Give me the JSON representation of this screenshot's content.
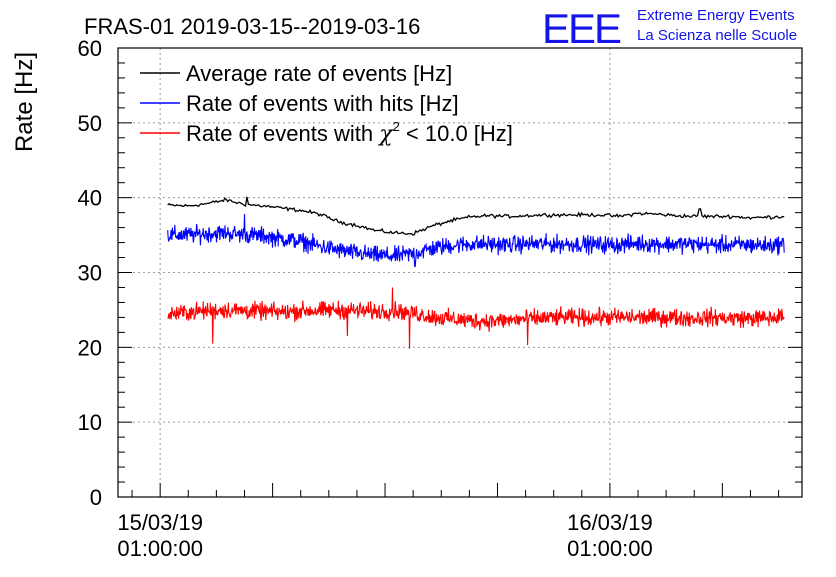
{
  "chart_data": {
    "type": "line",
    "title": "FRAS-01 2019-03-15--2019-03-16",
    "ylabel": "Rate [Hz]",
    "xlabel": "",
    "ylim": [
      0,
      60
    ],
    "yticks": [
      0,
      10,
      20,
      30,
      40,
      50,
      60
    ],
    "x_unit": "hours since 2019-03-14 00:00:00",
    "xlim": [
      22.75,
      59.25
    ],
    "xticks": [
      {
        "value": 25,
        "line1": "15/03/19",
        "line2": "01:00:00"
      },
      {
        "value": 49,
        "line1": "16/03/19",
        "line2": "01:00:00"
      }
    ],
    "grid": true,
    "legend_position": "top-left",
    "series": [
      {
        "name": "Average rate of events [Hz]",
        "color": "#000000",
        "x": [
          25.4,
          26.5,
          27.5,
          28.5,
          29.5,
          30.5,
          31.5,
          32.5,
          33.5,
          34.5,
          35.5,
          36.5,
          37.5,
          38.5,
          39.5,
          40.5,
          41.5,
          42.5,
          43.5,
          44.5,
          45.5,
          46.5,
          47.5,
          48.5,
          49.5,
          50.5,
          51.5,
          52.5,
          53.5,
          54.5,
          55.5,
          56.5,
          57.5,
          58.3
        ],
        "y": [
          39.0,
          38.9,
          39.2,
          39.7,
          39.1,
          38.9,
          38.6,
          38.3,
          37.8,
          36.8,
          36.3,
          35.6,
          35.3,
          35.2,
          36.2,
          36.9,
          37.4,
          37.6,
          37.5,
          37.6,
          37.7,
          37.7,
          37.7,
          37.7,
          37.5,
          37.9,
          37.8,
          37.6,
          37.5,
          37.5,
          37.5,
          37.3,
          37.4,
          37.5
        ],
        "noise": 0.2
      },
      {
        "name": "Rate of events with hits [Hz]",
        "color": "#0000ff",
        "x": [
          25.4,
          26.5,
          27.5,
          28.5,
          29.5,
          30.5,
          31.5,
          32.5,
          33.5,
          34.5,
          35.5,
          36.5,
          37.5,
          38.5,
          39.5,
          40.5,
          41.5,
          42.5,
          43.5,
          44.5,
          45.5,
          46.5,
          47.5,
          48.5,
          49.5,
          50.5,
          51.5,
          52.5,
          53.5,
          54.5,
          55.5,
          56.5,
          57.5,
          58.3
        ],
        "y": [
          35.0,
          35.0,
          35.2,
          35.3,
          35.0,
          34.9,
          34.5,
          34.2,
          33.5,
          33.0,
          32.6,
          32.3,
          32.2,
          32.5,
          33.2,
          33.6,
          33.8,
          33.8,
          33.7,
          33.8,
          33.8,
          33.8,
          33.8,
          33.7,
          33.7,
          33.9,
          33.8,
          33.8,
          33.8,
          33.7,
          33.7,
          33.7,
          33.6,
          33.8
        ],
        "noise": 1.0
      },
      {
        "name": "Rate of events with χ2 < 10.0 [Hz]",
        "color": "#ff0000",
        "x": [
          25.4,
          26.5,
          27.5,
          28.5,
          29.5,
          30.5,
          31.5,
          32.5,
          33.5,
          34.5,
          35.5,
          36.5,
          37.5,
          38.5,
          39.5,
          40.5,
          41.5,
          42.5,
          43.5,
          44.5,
          45.5,
          46.5,
          47.5,
          48.5,
          49.5,
          50.5,
          51.5,
          52.5,
          53.5,
          54.5,
          55.5,
          56.5,
          57.5,
          58.3
        ],
        "y": [
          24.4,
          24.7,
          24.9,
          25.0,
          24.9,
          24.8,
          24.7,
          24.9,
          24.9,
          25.0,
          24.9,
          24.8,
          24.9,
          24.6,
          24.1,
          23.8,
          23.6,
          23.5,
          23.6,
          23.8,
          23.9,
          24.0,
          24.0,
          24.0,
          24.0,
          24.0,
          24.0,
          24.0,
          23.9,
          24.0,
          23.9,
          23.9,
          23.9,
          24.1
        ],
        "noise": 1.0
      }
    ],
    "annotations": [
      {
        "series": 2,
        "x": 27.8,
        "y": 20.5
      },
      {
        "series": 2,
        "x": 35.0,
        "y": 21.5
      },
      {
        "series": 2,
        "x": 37.4,
        "y": 28.0
      },
      {
        "series": 2,
        "x": 38.3,
        "y": 19.8
      },
      {
        "series": 2,
        "x": 44.6,
        "y": 20.3
      },
      {
        "series": 1,
        "x": 29.5,
        "y": 37.8
      },
      {
        "series": 1,
        "x": 38.6,
        "y": 30.8
      },
      {
        "series": 0,
        "x": 29.6,
        "y": 40.1
      },
      {
        "series": 0,
        "x": 53.8,
        "y": 38.5
      }
    ]
  },
  "legend": {
    "items": [
      {
        "prefix": "Average rate of events [Hz]",
        "sup": "",
        "suffix": "",
        "color": "#000000"
      },
      {
        "prefix": "Rate of events with hits [Hz]",
        "sup": "",
        "suffix": "",
        "color": "#0000ff"
      },
      {
        "prefix": "Rate of events with ",
        "chi": "χ",
        "sup": "2",
        "suffix": " < 10.0 [Hz]",
        "color": "#ff0000"
      }
    ]
  },
  "logo": {
    "letters": "EEE",
    "line1": "Extreme Energy Events",
    "line2": "La Scienza nelle Scuole",
    "color": "#1414e6"
  }
}
